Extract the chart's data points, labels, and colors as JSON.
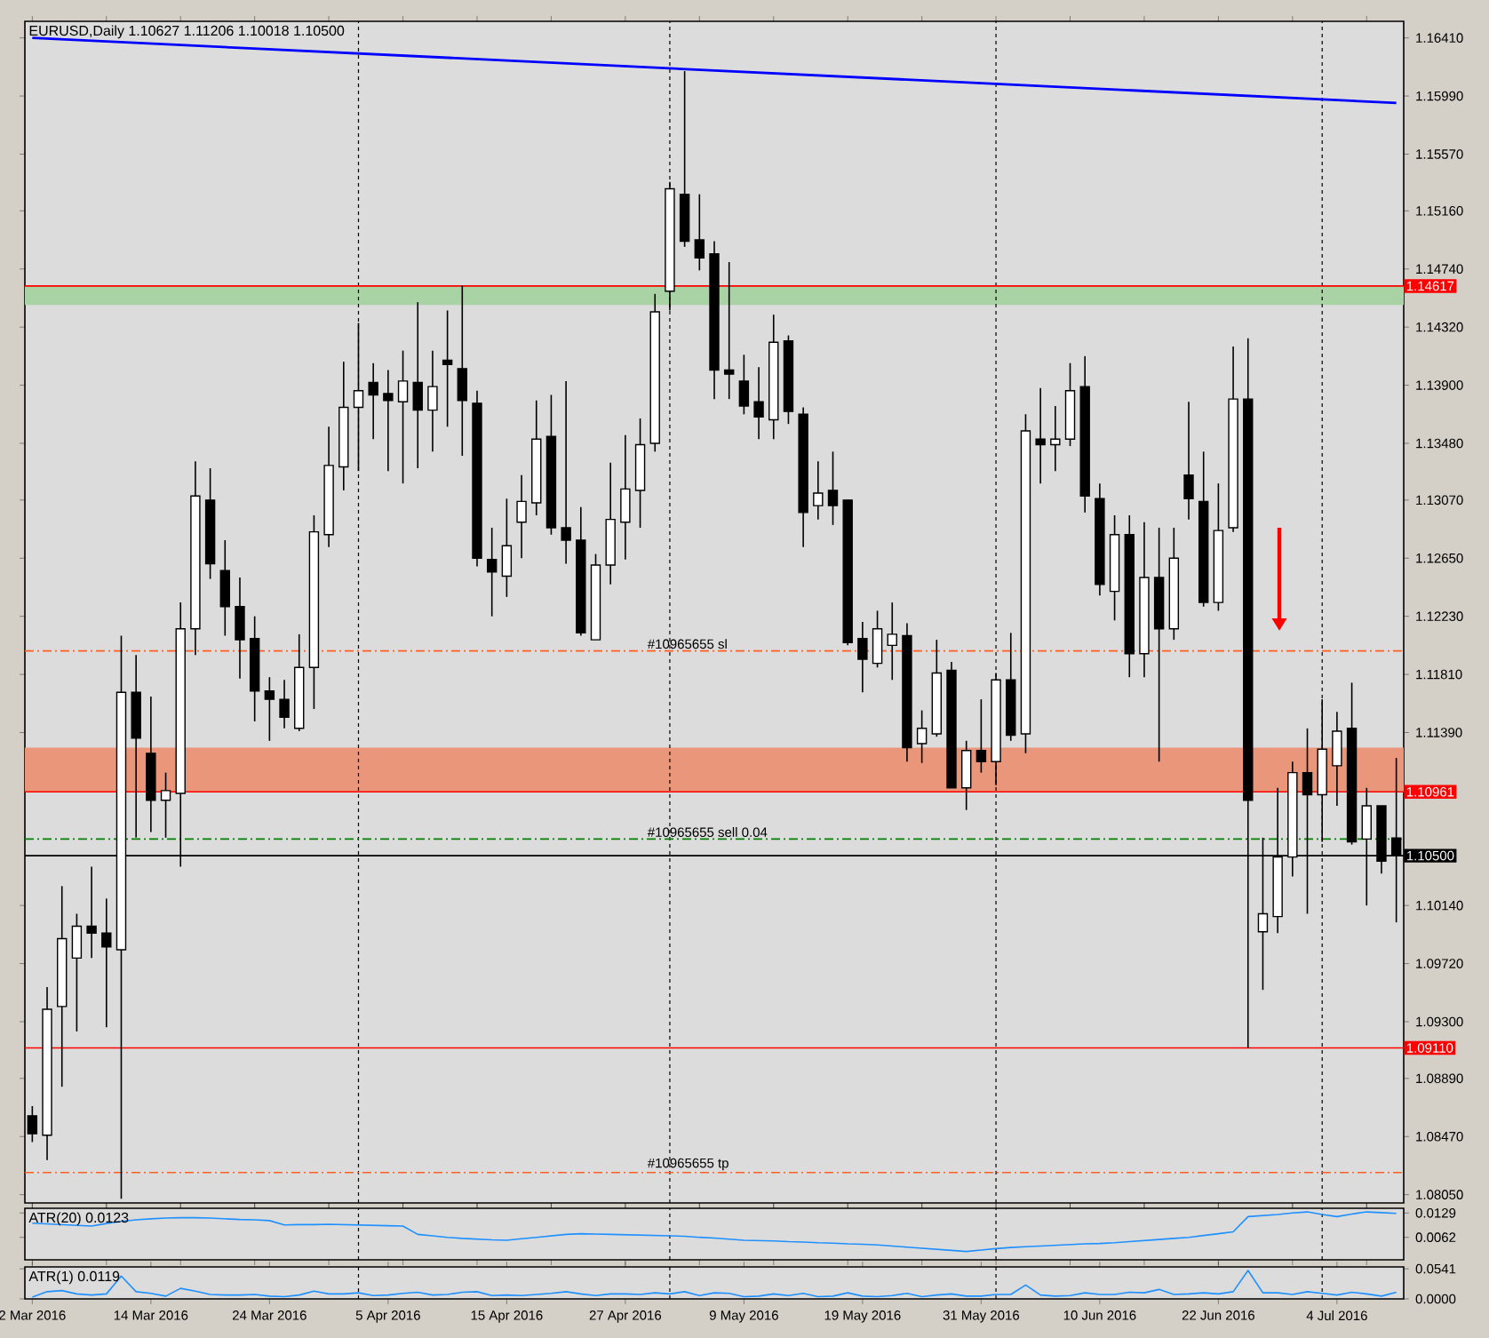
{
  "chart_data": [
    {
      "type": "candlestick",
      "title": "EURUSD,Daily 1.10627 1.11206 1.10018 1.10500",
      "tick_labels": "y",
      "grid": "x",
      "categories": [
        null,
        null,
        null,
        null,
        null,
        null,
        null,
        null,
        null,
        null,
        null,
        null,
        null,
        null,
        null,
        null,
        null,
        null,
        null,
        null,
        null,
        null,
        null,
        null,
        null,
        null,
        null,
        null,
        null,
        null,
        null,
        null,
        null,
        null,
        null,
        null,
        null,
        null,
        null,
        null,
        null,
        null,
        null,
        null,
        null,
        null,
        null,
        null,
        null,
        null,
        null,
        null,
        null,
        null,
        null,
        null,
        null,
        null,
        null,
        null,
        null,
        null,
        null,
        null,
        null,
        null,
        null,
        null,
        null,
        null,
        null,
        null,
        null,
        null,
        null,
        null,
        null,
        null,
        null,
        null,
        null,
        null,
        null,
        null,
        null,
        null,
        null,
        null,
        null,
        null,
        null,
        null,
        null
      ],
      "ohlc": [
        [
          1.0862,
          1.0869,
          1.0843,
          1.0849
        ],
        [
          1.0848,
          1.0955,
          1.083,
          1.0939
        ],
        [
          1.0941,
          1.1028,
          1.0883,
          1.099
        ],
        [
          1.0976,
          1.1008,
          1.0923,
          1.0999
        ],
        [
          1.0999,
          1.1042,
          1.0976,
          1.0994
        ],
        [
          1.0994,
          1.1019,
          1.0926,
          1.0984
        ],
        [
          1.0982,
          1.1209,
          1.0802,
          1.1168
        ],
        [
          1.1168,
          1.1195,
          1.1063,
          1.1135
        ],
        [
          1.1124,
          1.1165,
          1.1067,
          1.109
        ],
        [
          1.109,
          1.111,
          1.1063,
          1.1097
        ],
        [
          1.1095,
          1.1233,
          1.1042,
          1.1214
        ],
        [
          1.1214,
          1.1335,
          1.1195,
          1.131
        ],
        [
          1.1307,
          1.133,
          1.125,
          1.1261
        ],
        [
          1.1256,
          1.1278,
          1.1209,
          1.123
        ],
        [
          1.123,
          1.1251,
          1.1178,
          1.1206
        ],
        [
          1.1207,
          1.1223,
          1.1147,
          1.1169
        ],
        [
          1.1169,
          1.1179,
          1.1133,
          1.1163
        ],
        [
          1.1163,
          1.1177,
          1.1142,
          1.115
        ],
        [
          1.1142,
          1.121,
          1.114,
          1.1186
        ],
        [
          1.1186,
          1.1296,
          1.1156,
          1.1284
        ],
        [
          1.1282,
          1.136,
          1.1273,
          1.1332
        ],
        [
          1.1331,
          1.1407,
          1.1314,
          1.1374
        ],
        [
          1.1374,
          1.1435,
          1.1328,
          1.1386
        ],
        [
          1.1392,
          1.1406,
          1.1351,
          1.1383
        ],
        [
          1.1384,
          1.1401,
          1.1328,
          1.1379
        ],
        [
          1.1378,
          1.1415,
          1.1319,
          1.1393
        ],
        [
          1.1392,
          1.145,
          1.133,
          1.1372
        ],
        [
          1.1372,
          1.1415,
          1.1342,
          1.1389
        ],
        [
          1.1408,
          1.1444,
          1.136,
          1.1405
        ],
        [
          1.1402,
          1.1462,
          1.1339,
          1.1379
        ],
        [
          1.1377,
          1.1386,
          1.1259,
          1.1265
        ],
        [
          1.1264,
          1.1287,
          1.1223,
          1.1255
        ],
        [
          1.1252,
          1.1308,
          1.1237,
          1.1274
        ],
        [
          1.1291,
          1.1325,
          1.1265,
          1.1306
        ],
        [
          1.1305,
          1.1379,
          1.1296,
          1.1351
        ],
        [
          1.1353,
          1.1383,
          1.1282,
          1.1287
        ],
        [
          1.1287,
          1.1393,
          1.1261,
          1.1278
        ],
        [
          1.1278,
          1.1302,
          1.1209,
          1.1211
        ],
        [
          1.1206,
          1.1268,
          1.1206,
          1.126
        ],
        [
          1.126,
          1.1334,
          1.1246,
          1.1293
        ],
        [
          1.1291,
          1.1354,
          1.1264,
          1.1315
        ],
        [
          1.1314,
          1.1366,
          1.1287,
          1.1347
        ],
        [
          1.1348,
          1.1456,
          1.1342,
          1.1443
        ],
        [
          1.1458,
          1.1537,
          1.1444,
          1.1532
        ],
        [
          1.1528,
          1.1617,
          1.149,
          1.1494
        ],
        [
          1.1495,
          1.1528,
          1.1473,
          1.1482
        ],
        [
          1.1485,
          1.1494,
          1.138,
          1.1401
        ],
        [
          1.1401,
          1.1479,
          1.138,
          1.1398
        ],
        [
          1.1393,
          1.1412,
          1.1369,
          1.1375
        ],
        [
          1.1378,
          1.1403,
          1.1351,
          1.1367
        ],
        [
          1.1365,
          1.1441,
          1.1351,
          1.1421
        ],
        [
          1.1422,
          1.1426,
          1.1362,
          1.1371
        ],
        [
          1.1369,
          1.1374,
          1.1273,
          1.1298
        ],
        [
          1.1303,
          1.1335,
          1.1293,
          1.1312
        ],
        [
          1.1314,
          1.1342,
          1.1289,
          1.1303
        ],
        [
          1.1307,
          1.1307,
          1.1202,
          1.1204
        ],
        [
          1.1207,
          1.1219,
          1.1168,
          1.1192
        ],
        [
          1.1189,
          1.1227,
          1.1186,
          1.1214
        ],
        [
          1.1202,
          1.1233,
          1.1177,
          1.121
        ],
        [
          1.1209,
          1.1218,
          1.1118,
          1.1128
        ],
        [
          1.1131,
          1.1155,
          1.1117,
          1.1142
        ],
        [
          1.1138,
          1.1206,
          1.1136,
          1.1182
        ],
        [
          1.1184,
          1.119,
          1.1099,
          1.1099
        ],
        [
          1.1099,
          1.1133,
          1.1083,
          1.1126
        ],
        [
          1.1126,
          1.1163,
          1.111,
          1.1118
        ],
        [
          1.1118,
          1.1182,
          1.1101,
          1.1177
        ],
        [
          1.1177,
          1.1211,
          1.1133,
          1.1137
        ],
        [
          1.1138,
          1.1369,
          1.1124,
          1.1357
        ],
        [
          1.1351,
          1.1388,
          1.1319,
          1.1347
        ],
        [
          1.1347,
          1.1375,
          1.1328,
          1.1351
        ],
        [
          1.1351,
          1.1406,
          1.1346,
          1.1386
        ],
        [
          1.1389,
          1.1411,
          1.1298,
          1.131
        ],
        [
          1.1308,
          1.1319,
          1.1238,
          1.1246
        ],
        [
          1.1241,
          1.1296,
          1.122,
          1.1282
        ],
        [
          1.1282,
          1.1296,
          1.1179,
          1.1196
        ],
        [
          1.1196,
          1.1291,
          1.1179,
          1.1251
        ],
        [
          1.1251,
          1.1287,
          1.1118,
          1.1214
        ],
        [
          1.1214,
          1.1287,
          1.1206,
          1.1265
        ],
        [
          1.1325,
          1.1378,
          1.1293,
          1.1308
        ],
        [
          1.1306,
          1.1342,
          1.123,
          1.1233
        ],
        [
          1.1233,
          1.1319,
          1.1227,
          1.1285
        ],
        [
          1.1287,
          1.1418,
          1.1284,
          1.138
        ],
        [
          1.138,
          1.1424,
          1.0911,
          1.109
        ],
        [
          1.0995,
          1.1063,
          1.0953,
          1.1008
        ],
        [
          1.1006,
          1.1099,
          1.0994,
          1.1049
        ],
        [
          1.1049,
          1.1118,
          1.1035,
          1.111
        ],
        [
          1.111,
          1.1142,
          1.1008,
          1.1094
        ],
        [
          1.1094,
          1.1163,
          1.106,
          1.1127
        ],
        [
          1.1115,
          1.1154,
          1.1086,
          1.114
        ],
        [
          1.1142,
          1.1175,
          1.1058,
          1.106
        ],
        [
          1.1062,
          1.1099,
          1.1014,
          1.1086
        ],
        [
          1.1086,
          1.1086,
          1.1037,
          1.1046
        ],
        [
          1.10627,
          1.11206,
          1.10018,
          1.105
        ]
      ],
      "series": [
        {
          "type": "line",
          "color": "#0000ff",
          "values": [
            1.1641,
            null,
            null,
            null,
            null,
            null,
            null,
            null,
            null,
            null,
            null,
            null,
            null,
            null,
            null,
            null,
            null,
            null,
            null,
            null,
            null,
            null,
            null,
            null,
            null,
            null,
            null,
            null,
            null,
            null,
            null,
            null,
            null,
            null,
            null,
            null,
            null,
            null,
            null,
            null,
            null,
            null,
            null,
            null,
            null,
            null,
            null,
            null,
            null,
            null,
            null,
            null,
            null,
            null,
            null,
            null,
            null,
            null,
            null,
            null,
            null,
            null,
            null,
            null,
            null,
            null,
            null,
            null,
            null,
            null,
            null,
            null,
            null,
            null,
            null,
            null,
            null,
            null,
            null,
            null,
            null,
            null,
            null,
            null,
            null,
            null,
            null,
            null,
            null,
            null,
            null,
            null,
            1.1594
          ]
        }
      ],
      "ylim": [
        1.0799,
        1.1653
      ],
      "yticks": [
        {
          "value": 1.1641,
          "label": "1.16410"
        },
        {
          "value": 1.1599,
          "label": "1.15990"
        },
        {
          "value": 1.1557,
          "label": "1.15570"
        },
        {
          "value": 1.1516,
          "label": "1.15160"
        },
        {
          "value": 1.1474,
          "label": "1.14740"
        },
        {
          "value": 1.1432,
          "label": "1.14320"
        },
        {
          "value": 1.139,
          "label": "1.13900"
        },
        {
          "value": 1.1348,
          "label": "1.13480"
        },
        {
          "value": 1.1307,
          "label": "1.13070"
        },
        {
          "value": 1.1265,
          "label": "1.12650"
        },
        {
          "value": 1.1223,
          "label": "1.12230"
        },
        {
          "value": 1.1181,
          "label": "1.11810"
        },
        {
          "value": 1.1139,
          "label": "1.11390"
        },
        {
          "value": 1.1014,
          "label": "1.10140"
        },
        {
          "value": 1.0972,
          "label": "1.09720"
        },
        {
          "value": 1.093,
          "label": "1.09300"
        },
        {
          "value": 1.0889,
          "label": "1.08890"
        },
        {
          "value": 1.0847,
          "label": "1.08470"
        },
        {
          "value": 1.0805,
          "label": "1.08050"
        }
      ],
      "bands": [
        {
          "axis": "y",
          "from": 1.1448,
          "to": 1.14617,
          "color": "#a9d3a4"
        },
        {
          "axis": "y",
          "from": 1.10961,
          "to": 1.1128,
          "color": "#e9967a"
        }
      ],
      "ref_lines": [
        {
          "axis": "y",
          "value": 1.14617,
          "label": "1.14617",
          "color": "#ff0000",
          "line_style": "solid"
        },
        {
          "axis": "y",
          "value": 1.10961,
          "label": "1.10961",
          "color": "#ff0000",
          "line_style": "solid"
        },
        {
          "axis": "y",
          "value": 1.0911,
          "label": "1.09110",
          "color": "#ff0000",
          "line_style": "solid"
        },
        {
          "axis": "y",
          "value": 1.105,
          "label": "1.10500",
          "color": "#000000",
          "line_style": "solid"
        },
        {
          "axis": "y",
          "value": 1.1198,
          "label": "#10965655 sl",
          "color": "#ff6020",
          "line_style": "dashed"
        },
        {
          "axis": "y",
          "value": 1.1062,
          "label": "#10965655 sell 0.04",
          "color": "#008000",
          "line_style": "dashed"
        },
        {
          "axis": "y",
          "value": 1.0821,
          "label": "#10965655 tp",
          "color": "#ff6020",
          "line_style": "dashed"
        }
      ]
    },
    {
      "type": "line",
      "title": "ATR(20) 0.0123",
      "tick_labels": "y",
      "grid": "x",
      "categories": [
        null,
        null,
        null,
        null,
        null,
        null,
        null,
        null,
        null,
        null,
        null,
        null,
        null,
        null,
        null,
        null,
        null,
        null,
        null,
        null,
        null,
        null,
        null,
        null,
        null,
        null,
        null,
        null,
        null,
        null,
        null,
        null,
        null,
        null,
        null,
        null,
        null,
        null,
        null,
        null,
        null,
        null,
        null,
        null,
        null,
        null,
        null,
        null,
        null,
        null,
        null,
        null,
        null,
        null,
        null,
        null,
        null,
        null,
        null,
        null,
        null,
        null,
        null,
        null,
        null,
        null,
        null,
        null,
        null,
        null,
        null,
        null,
        null,
        null,
        null,
        null,
        null,
        null,
        null,
        null,
        null,
        null,
        null,
        null,
        null,
        null,
        null,
        null,
        null,
        null,
        null,
        null,
        null
      ],
      "series": [
        {
          "color": "#1e90ff",
          "values": [
            0.0101,
            0.0099,
            0.0097,
            0.0095,
            0.0093,
            0.01,
            0.0106,
            0.011,
            0.0113,
            0.0115,
            0.0116,
            0.0116,
            0.0115,
            0.0113,
            0.0111,
            0.011,
            0.0108,
            0.0096,
            0.0097,
            0.0097,
            0.0098,
            0.0097,
            0.0096,
            0.0095,
            0.0094,
            0.0093,
            0.007,
            0.0066,
            0.0062,
            0.0059,
            0.0057,
            0.0055,
            0.0054,
            0.0058,
            0.0062,
            0.0066,
            0.007,
            0.0072,
            0.0071,
            0.007,
            0.0069,
            0.0068,
            0.0067,
            0.0066,
            0.0065,
            0.0062,
            0.006,
            0.0057,
            0.0054,
            0.0053,
            0.0052,
            0.005,
            0.0049,
            0.0047,
            0.0046,
            0.0044,
            0.0043,
            0.0041,
            0.0038,
            0.0035,
            0.0032,
            0.0029,
            0.0026,
            0.0023,
            0.0027,
            0.0031,
            0.0034,
            0.0036,
            0.0038,
            0.004,
            0.0042,
            0.0044,
            0.0045,
            0.0047,
            0.005,
            0.0053,
            0.0056,
            0.0059,
            0.0062,
            0.0067,
            0.0072,
            0.0077,
            0.0119,
            0.0122,
            0.0125,
            0.0129,
            0.0132,
            0.0125,
            0.0119,
            0.0126,
            0.0132,
            0.013,
            0.0128
          ]
        }
      ],
      "ylim": [
        0.0,
        0.0142
      ],
      "yticks": [
        {
          "value": 0.0129,
          "label": "0.0129"
        },
        {
          "value": 0.0062,
          "label": "0.0062"
        }
      ]
    },
    {
      "type": "line",
      "title": "ATR(1) 0.0119",
      "grid": "x",
      "categories": [
        "2 Mar 2016",
        null,
        null,
        null,
        null,
        null,
        null,
        null,
        "14 Mar 2016",
        null,
        null,
        null,
        null,
        null,
        null,
        null,
        "24 Mar 2016",
        null,
        null,
        null,
        null,
        null,
        null,
        null,
        "5 Apr 2016",
        null,
        null,
        null,
        null,
        null,
        null,
        null,
        "15 Apr 2016",
        null,
        null,
        null,
        null,
        null,
        null,
        null,
        "27 Apr 2016",
        null,
        null,
        null,
        null,
        null,
        null,
        null,
        "9 May 2016",
        null,
        null,
        null,
        null,
        null,
        null,
        null,
        "19 May 2016",
        null,
        null,
        null,
        null,
        null,
        null,
        null,
        "31 May 2016",
        null,
        null,
        null,
        null,
        null,
        null,
        null,
        "10 Jun 2016",
        null,
        null,
        null,
        null,
        null,
        null,
        null,
        "22 Jun 2016",
        null,
        null,
        null,
        null,
        null,
        null,
        null,
        "4 Jul 2016",
        null,
        null,
        null,
        null
      ],
      "series": [
        {
          "color": "#1e90ff",
          "values": [
            0.003,
            0.013,
            0.015,
            0.009,
            0.007,
            0.009,
            0.041,
            0.013,
            0.01,
            0.005,
            0.019,
            0.014,
            0.008,
            0.007,
            0.007,
            0.008,
            0.005,
            0.004,
            0.007,
            0.014,
            0.009,
            0.009,
            0.011,
            0.006,
            0.007,
            0.01,
            0.012,
            0.007,
            0.008,
            0.012,
            0.013,
            0.006,
            0.007,
            0.006,
            0.008,
            0.01,
            0.013,
            0.009,
            0.006,
            0.009,
            0.009,
            0.008,
            0.011,
            0.009,
            0.013,
            0.006,
            0.011,
            0.01,
            0.004,
            0.005,
            0.009,
            0.006,
            0.01,
            0.004,
            0.005,
            0.011,
            0.005,
            0.004,
            0.006,
            0.01,
            0.004,
            0.007,
            0.009,
            0.005,
            0.005,
            0.008,
            0.008,
            0.025,
            0.007,
            0.005,
            0.006,
            0.011,
            0.008,
            0.008,
            0.012,
            0.011,
            0.017,
            0.008,
            0.009,
            0.011,
            0.009,
            0.013,
            0.051,
            0.011,
            0.011,
            0.008,
            0.013,
            0.01,
            0.007,
            0.012,
            0.009,
            0.005,
            0.012
          ]
        }
      ],
      "ylim": [
        0.0,
        0.0575
      ],
      "yticks": [
        {
          "value": 0.0541,
          "label": "0.0541"
        },
        {
          "value": 0.0,
          "label": "0.0000"
        }
      ]
    }
  ]
}
